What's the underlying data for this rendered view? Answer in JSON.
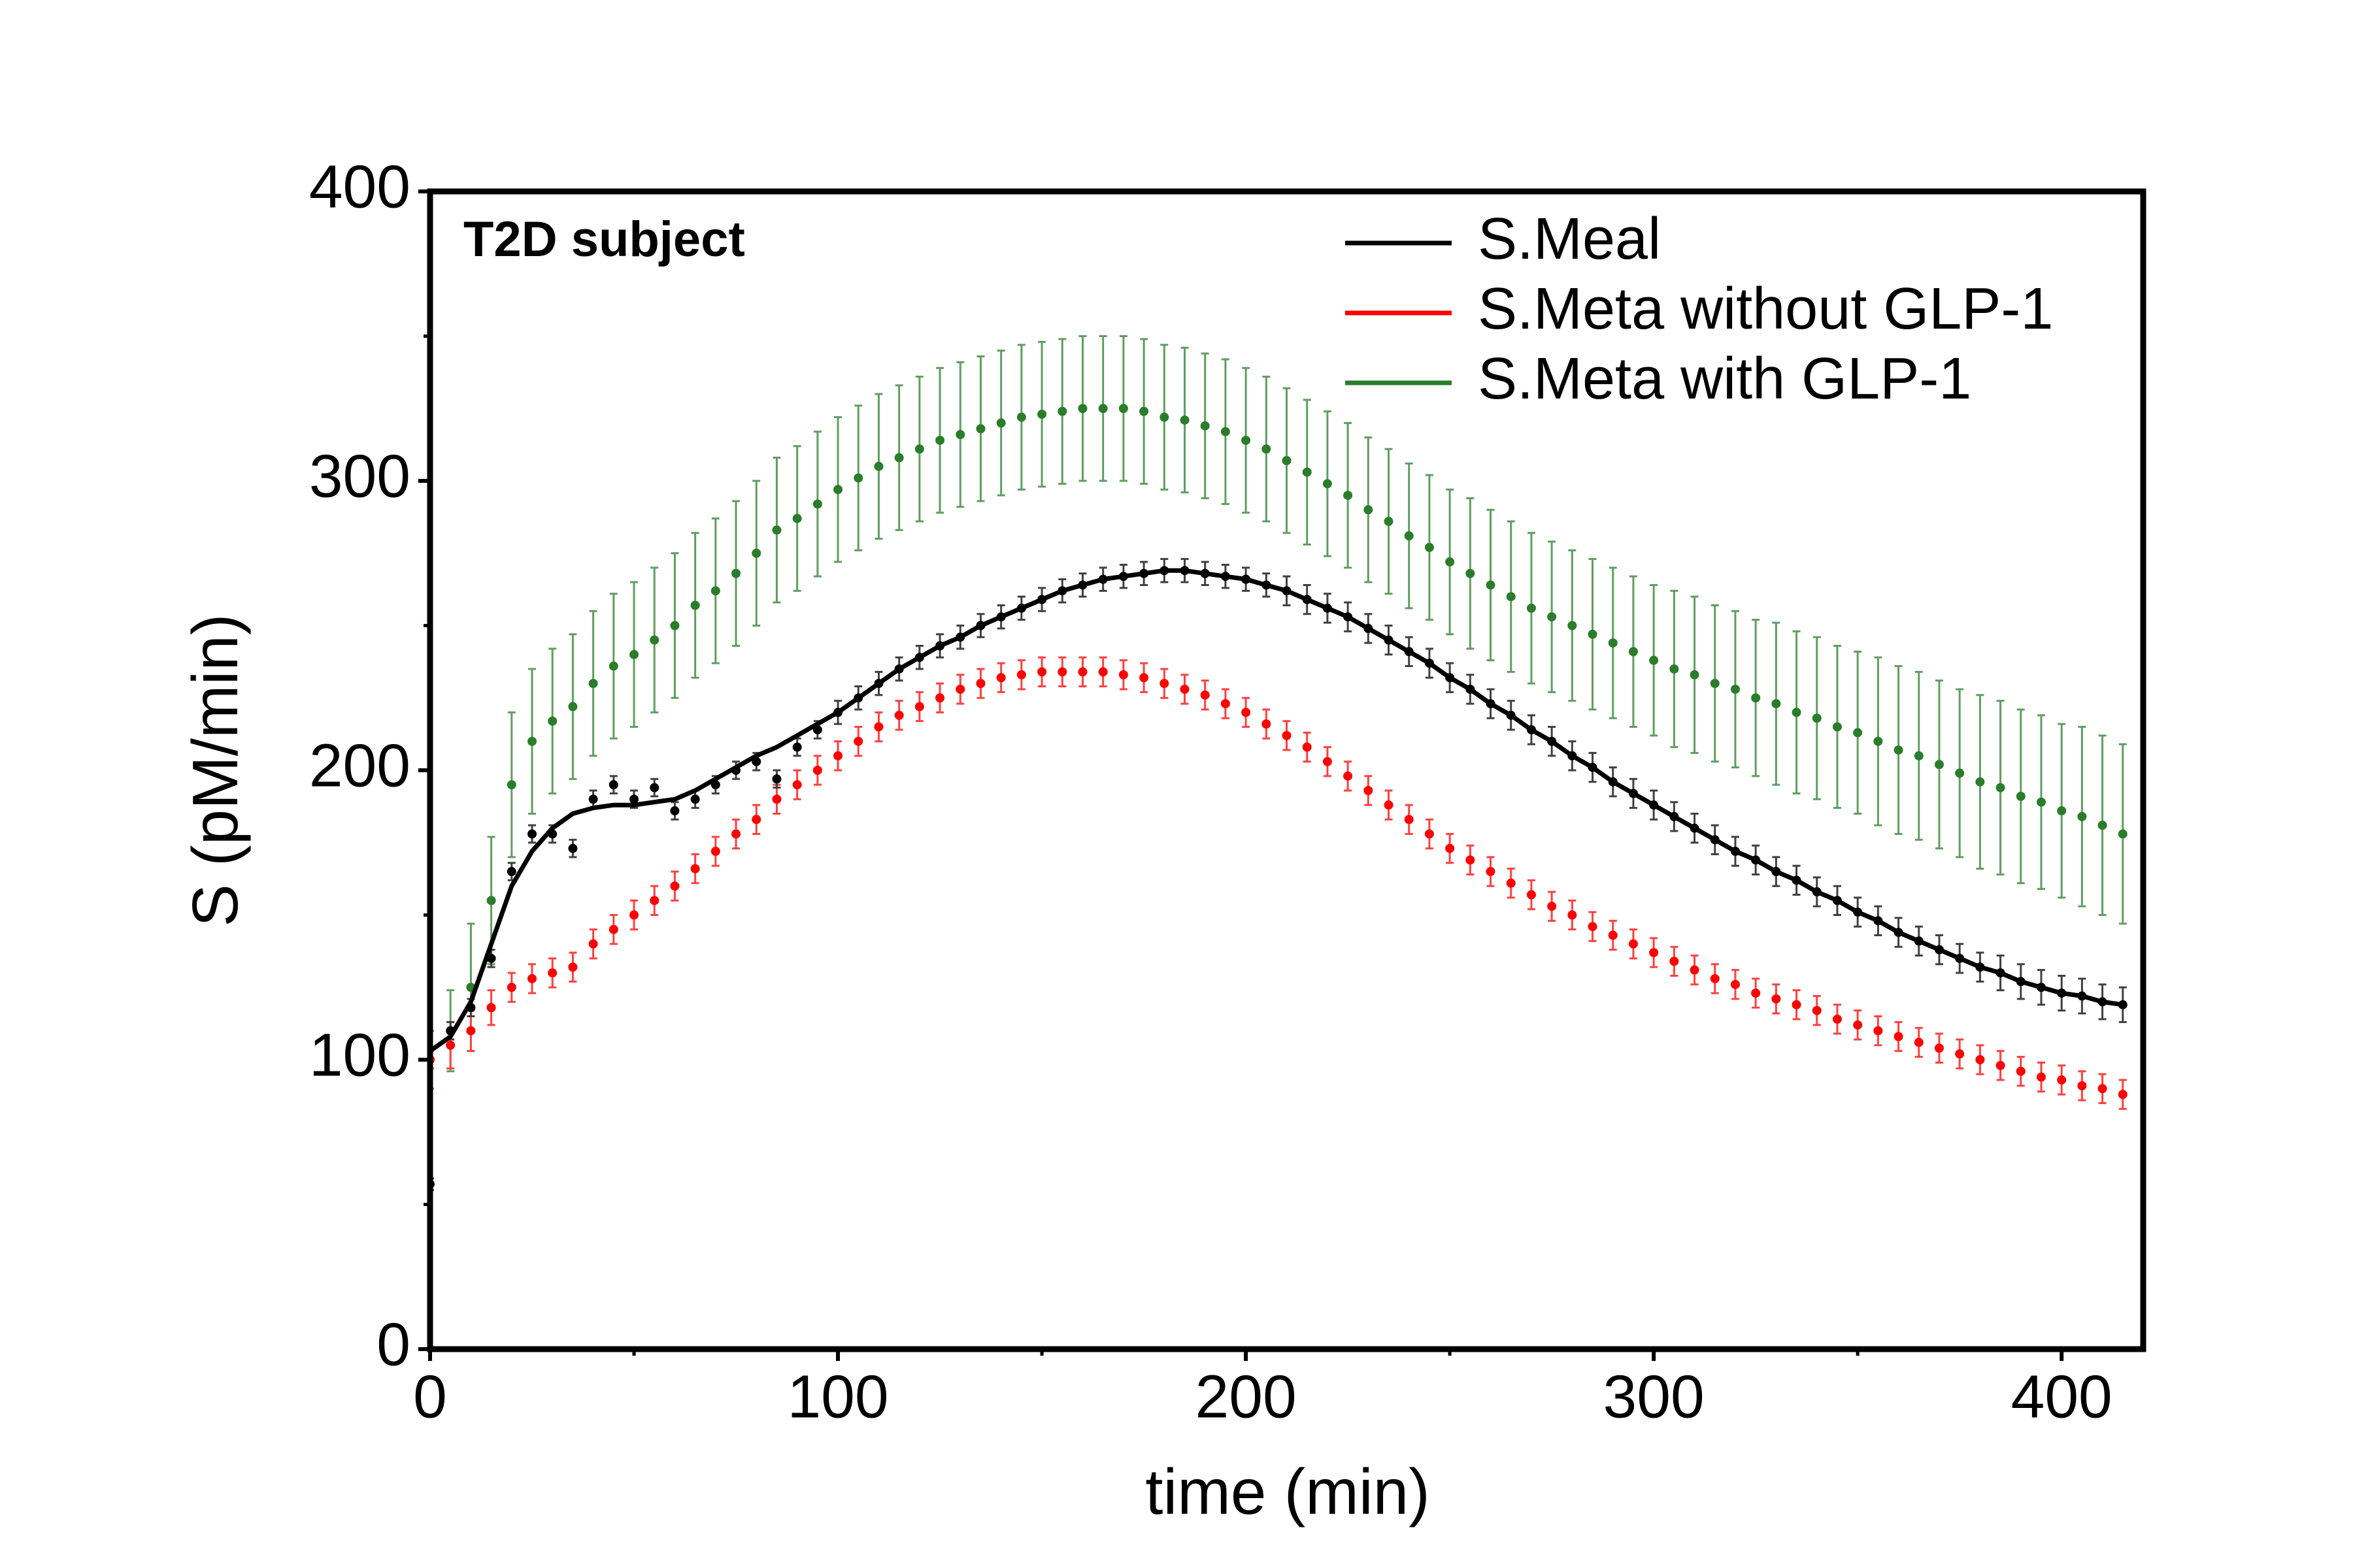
{
  "chart_data": {
    "type": "scatter",
    "annotation": "T2D subject",
    "xlabel": "time (min)",
    "ylabel": "S (pM/min)",
    "xlim": [
      0,
      420
    ],
    "ylim": [
      0,
      400
    ],
    "xticks": [
      0,
      100,
      200,
      300,
      400
    ],
    "yticks": [
      0,
      100,
      200,
      300,
      400
    ],
    "legend": "upper right",
    "x": [
      0,
      5,
      10,
      15,
      20,
      25,
      30,
      35,
      40,
      45,
      50,
      55,
      60,
      65,
      70,
      75,
      80,
      85,
      90,
      95,
      100,
      105,
      110,
      115,
      120,
      125,
      130,
      135,
      140,
      145,
      150,
      155,
      160,
      165,
      170,
      175,
      180,
      185,
      190,
      195,
      200,
      205,
      210,
      215,
      220,
      225,
      230,
      235,
      240,
      245,
      250,
      255,
      260,
      265,
      270,
      275,
      280,
      285,
      290,
      295,
      300,
      305,
      310,
      315,
      320,
      325,
      330,
      335,
      340,
      345,
      350,
      355,
      360,
      365,
      370,
      375,
      380,
      385,
      390,
      395,
      400,
      405,
      410,
      415
    ],
    "series": [
      {
        "name": "S.Meal",
        "color": "#000000",
        "fit": [
          103,
          108,
          120,
          140,
          160,
          172,
          180,
          185,
          187,
          188,
          188,
          189,
          190,
          193,
          197,
          201,
          205,
          208,
          212,
          216,
          220,
          225,
          230,
          235,
          239,
          243,
          246,
          250,
          253,
          256,
          259,
          262,
          264,
          266,
          267,
          268,
          269,
          269,
          268,
          267,
          266,
          264,
          262,
          259,
          256,
          253,
          249,
          245,
          241,
          237,
          232,
          228,
          223,
          219,
          214,
          210,
          205,
          201,
          196,
          192,
          188,
          184,
          180,
          176,
          172,
          169,
          165,
          162,
          158,
          155,
          151,
          148,
          144,
          141,
          138,
          135,
          132,
          130,
          127,
          125,
          123,
          122,
          120,
          119
        ],
        "values": [
          57,
          110,
          118,
          135,
          165,
          178,
          178,
          173,
          190,
          195,
          190,
          194,
          186,
          190,
          195,
          200,
          203,
          197,
          208,
          214,
          220,
          225,
          230,
          235,
          239,
          243,
          246,
          250,
          253,
          256,
          259,
          262,
          264,
          266,
          267,
          268,
          269,
          269,
          268,
          267,
          266,
          264,
          262,
          259,
          256,
          253,
          249,
          245,
          241,
          237,
          232,
          228,
          223,
          219,
          214,
          210,
          205,
          201,
          196,
          192,
          188,
          184,
          180,
          176,
          172,
          169,
          165,
          162,
          158,
          155,
          151,
          148,
          144,
          141,
          138,
          135,
          132,
          130,
          127,
          125,
          123,
          122,
          120,
          119
        ],
        "errors": [
          2,
          3,
          3,
          3,
          3,
          3,
          3,
          3,
          3,
          3,
          3,
          3,
          3,
          3,
          3,
          3,
          3,
          3,
          3,
          3,
          4,
          4,
          4,
          4,
          4,
          4,
          4,
          4,
          4,
          4,
          4,
          4,
          4,
          4,
          4,
          4,
          4,
          4,
          4,
          4,
          4,
          4,
          5,
          5,
          5,
          5,
          5,
          5,
          5,
          5,
          5,
          5,
          5,
          5,
          5,
          5,
          5,
          5,
          5,
          5,
          5,
          5,
          5,
          5,
          5,
          5,
          5,
          5,
          5,
          5,
          5,
          5,
          5,
          5,
          5,
          5,
          5,
          6,
          6,
          6,
          6,
          6,
          6,
          6
        ]
      },
      {
        "name": "S.Meta without GLP-1",
        "color": "#ff0000",
        "values": [
          100,
          105,
          110,
          118,
          125,
          128,
          130,
          132,
          140,
          145,
          150,
          155,
          160,
          166,
          172,
          178,
          183,
          190,
          195,
          200,
          205,
          210,
          215,
          219,
          222,
          225,
          228,
          230,
          232,
          233,
          234,
          234,
          234,
          234,
          233,
          232,
          230,
          228,
          226,
          223,
          220,
          216,
          212,
          208,
          203,
          198,
          193,
          188,
          183,
          178,
          173,
          169,
          165,
          161,
          157,
          153,
          150,
          146,
          143,
          140,
          137,
          134,
          131,
          128,
          126,
          123,
          121,
          119,
          117,
          114,
          112,
          110,
          108,
          106,
          104,
          102,
          100,
          98,
          96,
          94,
          93,
          91,
          90,
          88
        ],
        "errors": [
          3,
          8,
          7,
          6,
          5,
          5,
          5,
          5,
          5,
          5,
          5,
          5,
          5,
          5,
          5,
          5,
          5,
          5,
          5,
          5,
          5,
          5,
          5,
          5,
          5,
          5,
          5,
          5,
          5,
          5,
          5,
          5,
          5,
          5,
          5,
          5,
          5,
          5,
          5,
          5,
          5,
          5,
          5,
          5,
          5,
          5,
          5,
          5,
          5,
          5,
          5,
          5,
          5,
          5,
          5,
          5,
          5,
          5,
          5,
          5,
          5,
          5,
          5,
          5,
          5,
          5,
          5,
          5,
          5,
          5,
          5,
          5,
          5,
          5,
          5,
          5,
          5,
          5,
          5,
          5,
          5,
          5,
          5,
          5
        ]
      },
      {
        "name": "S.Meta with GLP-1",
        "color": "#2a7d2a",
        "values": [
          100,
          110,
          125,
          155,
          195,
          210,
          217,
          222,
          230,
          236,
          240,
          245,
          250,
          257,
          262,
          268,
          275,
          283,
          287,
          292,
          297,
          301,
          305,
          308,
          311,
          314,
          316,
          318,
          320,
          322,
          323,
          324,
          325,
          325,
          325,
          324,
          322,
          321,
          319,
          317,
          314,
          311,
          307,
          303,
          299,
          295,
          290,
          286,
          281,
          277,
          272,
          268,
          264,
          260,
          256,
          253,
          250,
          247,
          244,
          241,
          238,
          235,
          233,
          230,
          228,
          225,
          223,
          220,
          218,
          215,
          213,
          210,
          207,
          205,
          202,
          199,
          196,
          194,
          191,
          189,
          186,
          184,
          181,
          178
        ],
        "errors": [
          10,
          14,
          22,
          22,
          25,
          25,
          25,
          25,
          25,
          25,
          25,
          25,
          25,
          25,
          25,
          25,
          25,
          25,
          25,
          25,
          25,
          25,
          25,
          25,
          25,
          25,
          25,
          25,
          25,
          25,
          25,
          25,
          25,
          25,
          25,
          25,
          25,
          25,
          25,
          25,
          25,
          25,
          25,
          25,
          25,
          25,
          25,
          25,
          25,
          25,
          25,
          26,
          26,
          26,
          26,
          26,
          26,
          26,
          26,
          26,
          26,
          27,
          27,
          27,
          27,
          27,
          28,
          28,
          28,
          28,
          28,
          29,
          29,
          29,
          29,
          29,
          30,
          30,
          30,
          30,
          30,
          31,
          31,
          31
        ]
      }
    ]
  }
}
